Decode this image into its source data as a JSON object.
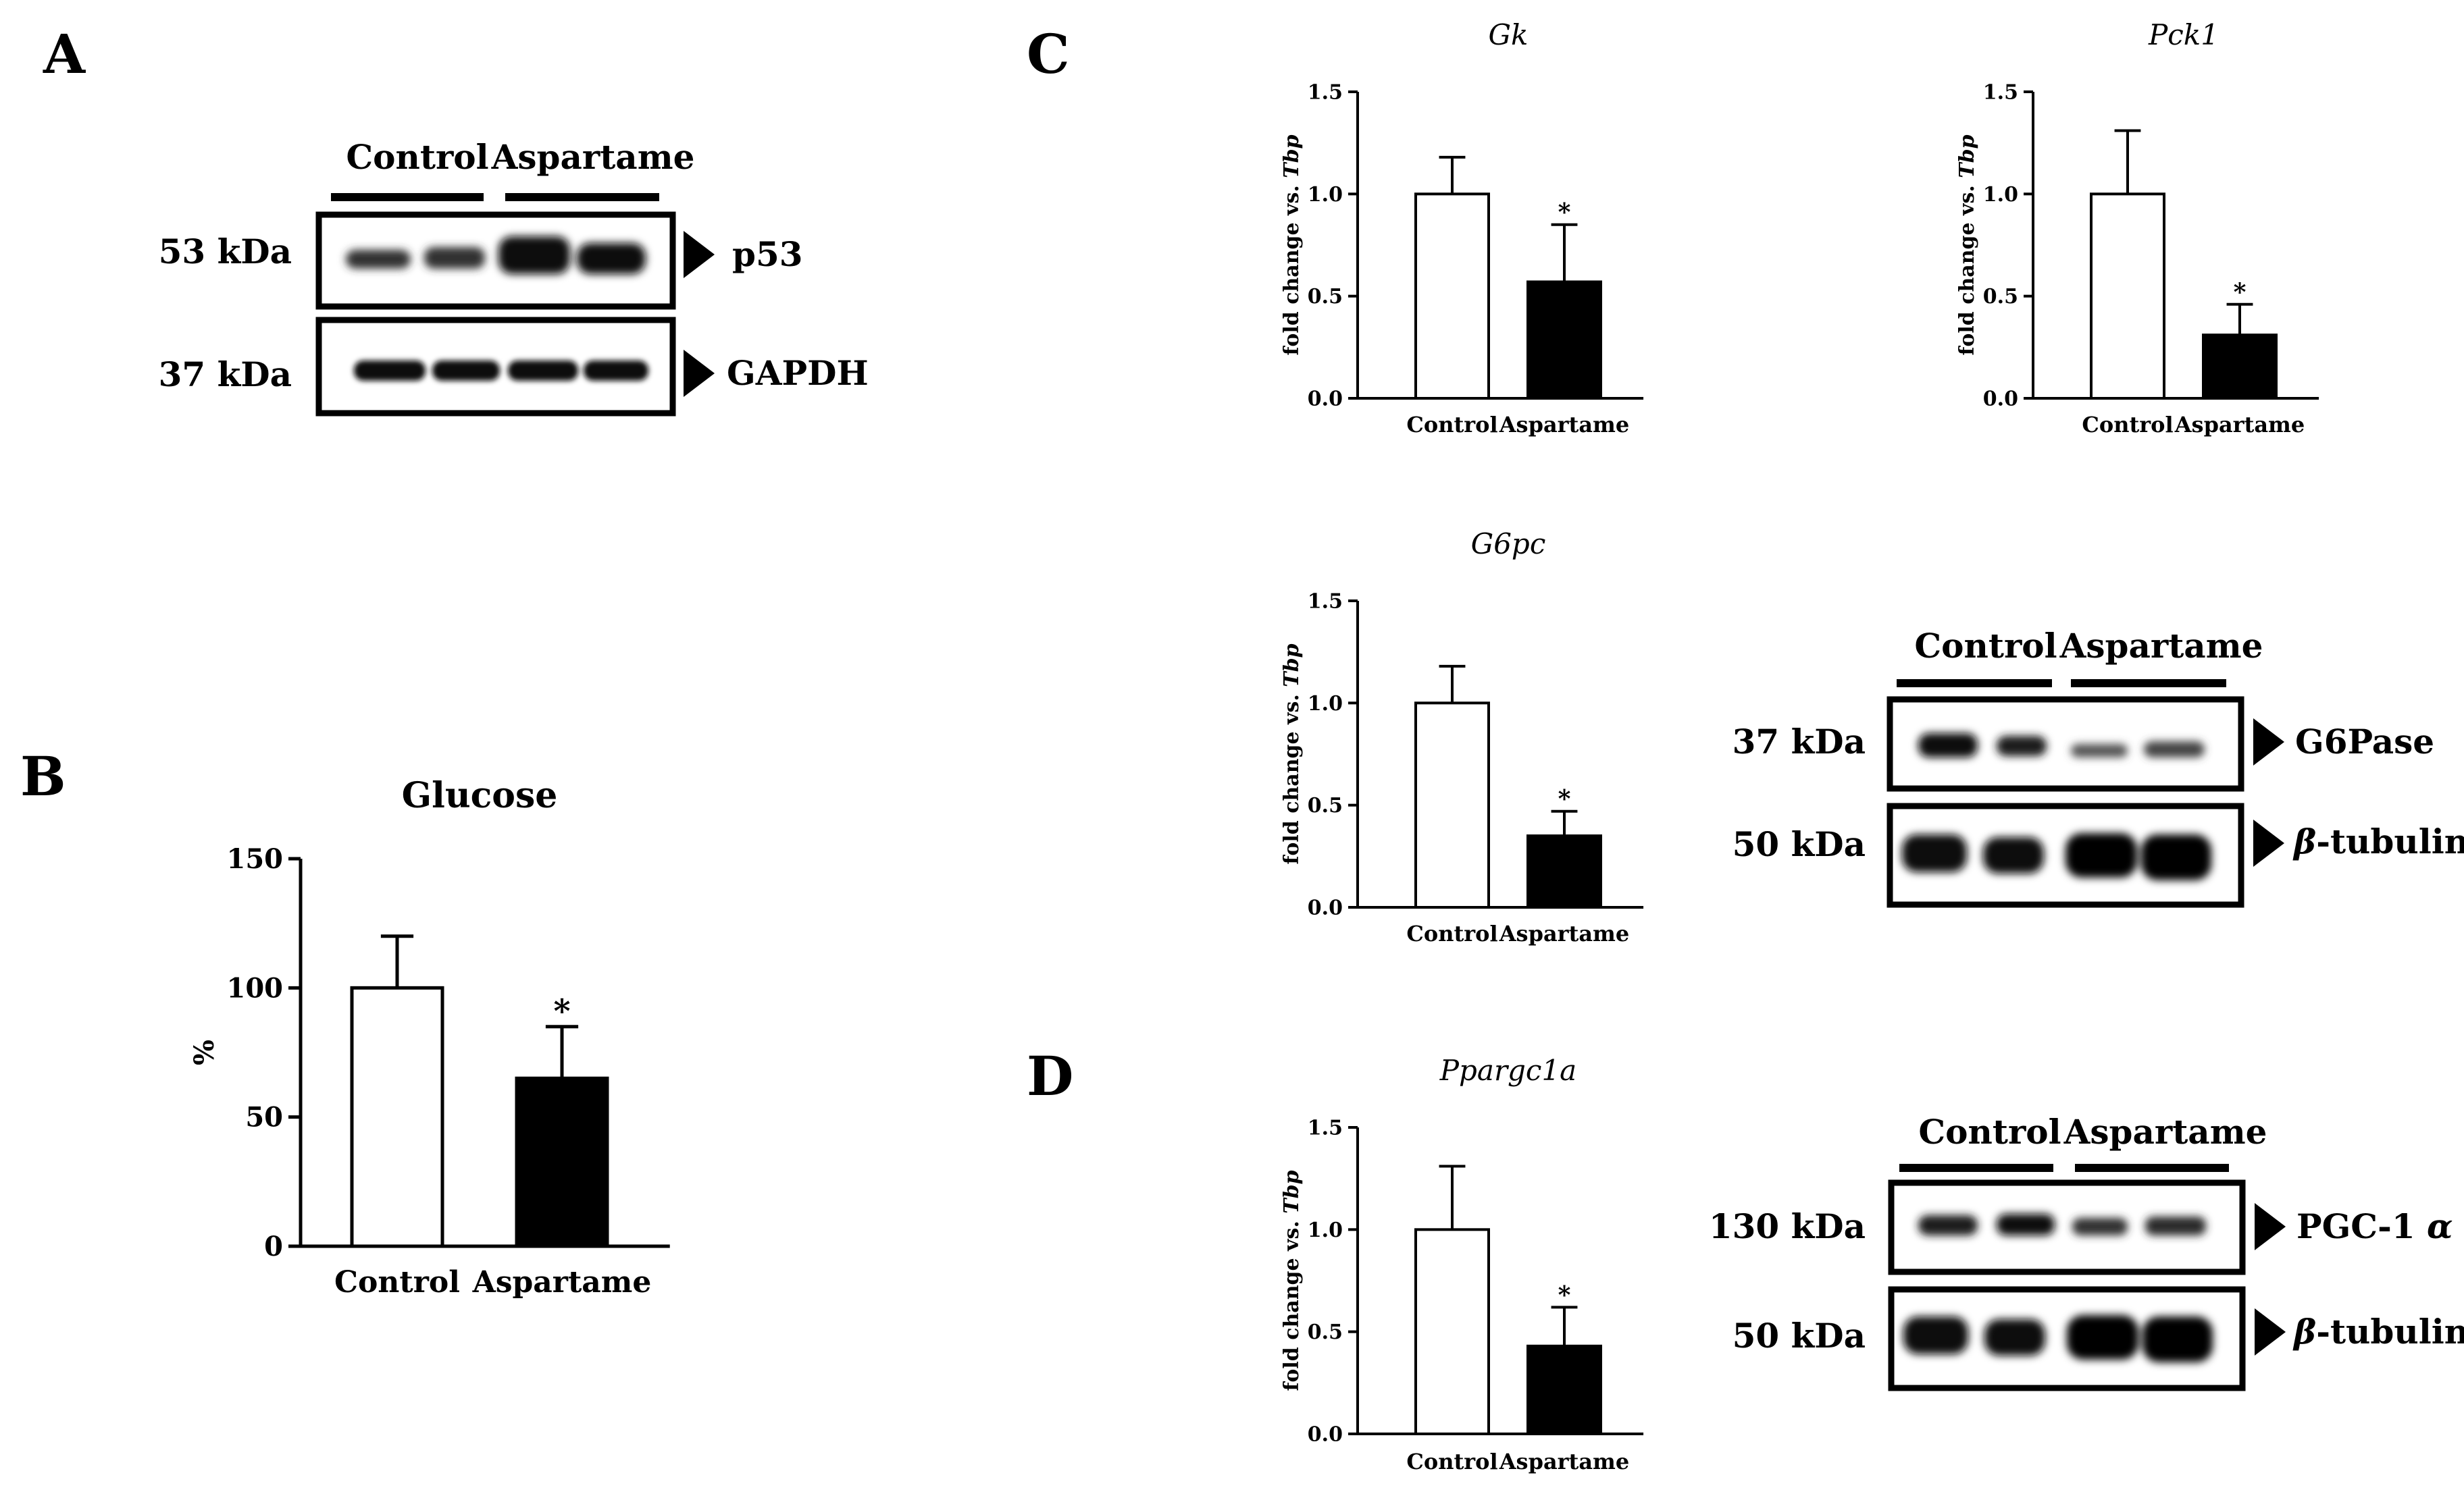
{
  "panels": {
    "A": "A",
    "B": "B",
    "C": "C",
    "D": "D"
  },
  "blot_A": {
    "groups": [
      "Control",
      "Aspartame"
    ],
    "rows": [
      {
        "kda": "53 kDa",
        "protein": "p53"
      },
      {
        "kda": "37 kDa",
        "protein": "GAPDH"
      }
    ]
  },
  "blot_G6pase": {
    "groups": [
      "Control",
      "Aspartame"
    ],
    "rows": [
      {
        "kda": "37 kDa",
        "protein": "G6Pase"
      },
      {
        "kda": "50 kDa",
        "protein_symbol": "β",
        "protein": "-tubulin"
      }
    ]
  },
  "blot_PGC": {
    "groups": [
      "Control",
      "Aspartame"
    ],
    "rows": [
      {
        "kda": "130 kDa",
        "protein": "PGC-1 ",
        "protein_symbol": "α"
      },
      {
        "kda": "50 kDa",
        "protein_symbol": "β",
        "protein": "-tubulin"
      }
    ]
  },
  "chart_data": [
    {
      "id": "glucose",
      "type": "bar",
      "title": "Glucose",
      "ylabel": "%",
      "ylabel_italic": "",
      "categories": [
        "Control",
        "Aspartame"
      ],
      "values": [
        100,
        65
      ],
      "errors": [
        20,
        20
      ],
      "significance": [
        "",
        "*"
      ],
      "colors": [
        "#ffffff",
        "#000000"
      ],
      "ylim": [
        0,
        150
      ],
      "yticks": [
        "0",
        "50",
        "100",
        "150"
      ],
      "ytick_values": [
        0,
        50,
        100,
        150
      ]
    },
    {
      "id": "gk",
      "type": "bar",
      "title": "Gk",
      "ylabel": "fold change vs. ",
      "ylabel_italic": "Tbp",
      "categories": [
        "Control",
        "Aspartame"
      ],
      "values": [
        1.0,
        0.57
      ],
      "errors": [
        0.18,
        0.28
      ],
      "significance": [
        "",
        "*"
      ],
      "colors": [
        "#ffffff",
        "#000000"
      ],
      "ylim": [
        0,
        1.5
      ],
      "yticks": [
        "0.0",
        "0.5",
        "1.0",
        "1.5"
      ],
      "ytick_values": [
        0,
        0.5,
        1.0,
        1.5
      ]
    },
    {
      "id": "pck1",
      "type": "bar",
      "title": "Pck1",
      "ylabel": "fold change vs. ",
      "ylabel_italic": "Tbp",
      "categories": [
        "Control",
        "Aspartame"
      ],
      "values": [
        1.0,
        0.31
      ],
      "errors": [
        0.31,
        0.15
      ],
      "significance": [
        "",
        "*"
      ],
      "colors": [
        "#ffffff",
        "#000000"
      ],
      "ylim": [
        0,
        1.5
      ],
      "yticks": [
        "0.0",
        "0.5",
        "1.0",
        "1.5"
      ],
      "ytick_values": [
        0,
        0.5,
        1.0,
        1.5
      ]
    },
    {
      "id": "g6pc",
      "type": "bar",
      "title": "G6pc",
      "ylabel": "fold change vs. ",
      "ylabel_italic": "Tbp",
      "categories": [
        "Control",
        "Aspartame"
      ],
      "values": [
        1.0,
        0.35
      ],
      "errors": [
        0.18,
        0.12
      ],
      "significance": [
        "",
        "*"
      ],
      "colors": [
        "#ffffff",
        "#000000"
      ],
      "ylim": [
        0,
        1.5
      ],
      "yticks": [
        "0.0",
        "0.5",
        "1.0",
        "1.5"
      ],
      "ytick_values": [
        0,
        0.5,
        1.0,
        1.5
      ]
    },
    {
      "id": "ppargc1a",
      "type": "bar",
      "title": "Ppargc1a",
      "ylabel": "fold change vs. ",
      "ylabel_italic": "Tbp",
      "categories": [
        "Control",
        "Aspartame"
      ],
      "values": [
        1.0,
        0.43
      ],
      "errors": [
        0.31,
        0.19
      ],
      "significance": [
        "",
        "*"
      ],
      "colors": [
        "#ffffff",
        "#000000"
      ],
      "ylim": [
        0,
        1.5
      ],
      "yticks": [
        "0.0",
        "0.5",
        "1.0",
        "1.5"
      ],
      "ytick_values": [
        0,
        0.5,
        1.0,
        1.5
      ]
    }
  ]
}
